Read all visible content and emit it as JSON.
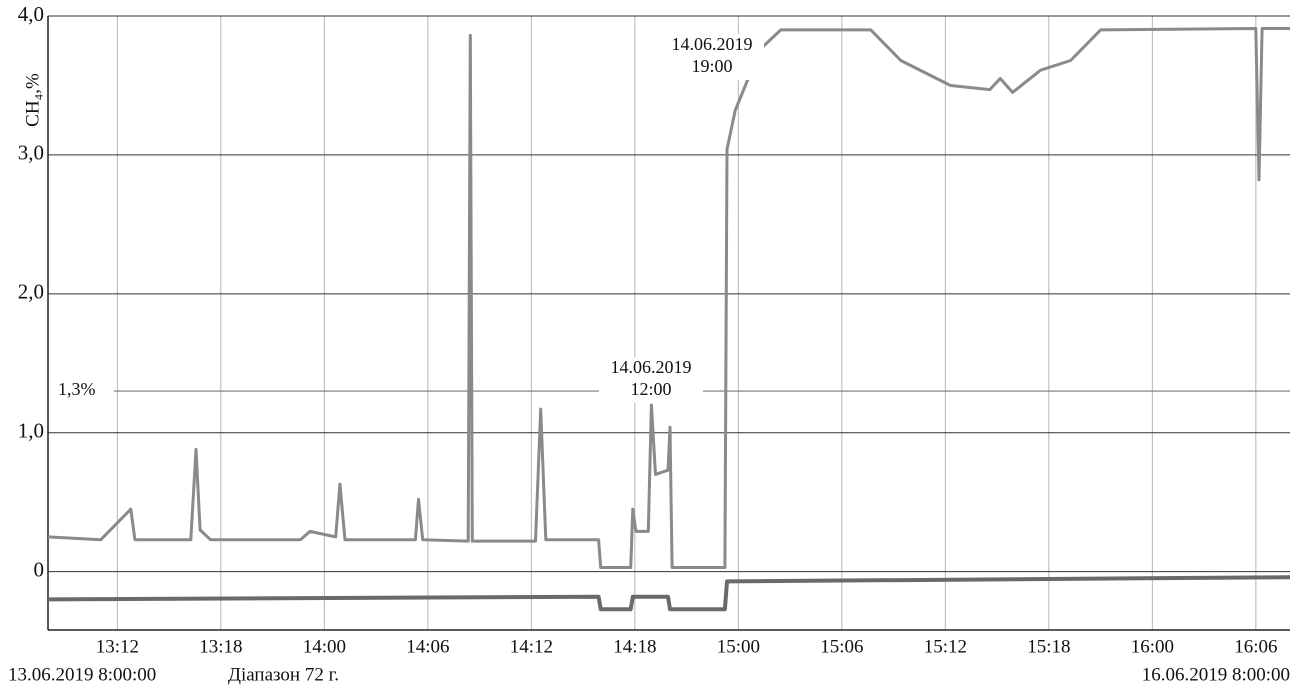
{
  "chart_data": {
    "type": "line",
    "y_label": "CH₄,%",
    "xlim": [
      0.33,
      12.33
    ],
    "xticks": [
      {
        "value": 1,
        "label": "13:12"
      },
      {
        "value": 2,
        "label": "13:18"
      },
      {
        "value": 3,
        "label": "14:00"
      },
      {
        "value": 4,
        "label": "14:06"
      },
      {
        "value": 5,
        "label": "14:12"
      },
      {
        "value": 6,
        "label": "14:18"
      },
      {
        "value": 7,
        "label": "15:00"
      },
      {
        "value": 8,
        "label": "15:06"
      },
      {
        "value": 9,
        "label": "15:12"
      },
      {
        "value": 10,
        "label": "15:18"
      },
      {
        "value": 11,
        "label": "16:00"
      },
      {
        "value": 12,
        "label": "16:06"
      }
    ],
    "ylim": [
      -0.42,
      4.0
    ],
    "yticks": [
      {
        "value": 0,
        "label": "0"
      },
      {
        "value": 1,
        "label": "1,0"
      },
      {
        "value": 2,
        "label": "2,0"
      },
      {
        "value": 3,
        "label": "3,0"
      },
      {
        "value": 4,
        "label": "4,0"
      }
    ],
    "grid": true,
    "threshold": {
      "value": 1.3,
      "label": "1,3%"
    },
    "annotations": [
      {
        "lines": [
          "14.06.2019",
          "19:00"
        ]
      },
      {
        "lines": [
          "14.06.2019",
          "12:00"
        ]
      }
    ],
    "footer": {
      "start": "13.06.2019  8:00:00",
      "range": "Діапазон 72 г.",
      "end": "16.06.2019  8:00:00"
    },
    "series": [
      {
        "color": "#8a8a8a",
        "x": [
          0.33,
          0.84,
          1.13,
          1.17,
          1.71,
          1.76,
          1.8,
          1.9,
          2.77,
          2.86,
          3.11,
          3.15,
          3.2,
          3.88,
          3.91,
          3.95,
          4.39,
          4.41,
          4.43,
          5.04,
          5.09,
          5.14,
          5.65,
          5.67,
          5.96,
          5.98,
          6.01,
          6.13,
          6.16,
          6.2,
          6.32,
          6.34,
          6.36,
          6.87,
          6.89,
          6.97,
          7.21,
          7.41,
          8.28,
          8.57,
          9.05,
          9.43,
          9.53,
          9.65,
          9.92,
          10.21,
          10.5,
          12.0,
          12.03,
          12.06,
          12.33
        ],
        "values": [
          0.25,
          0.23,
          0.45,
          0.23,
          0.23,
          0.88,
          0.3,
          0.23,
          0.23,
          0.29,
          0.25,
          0.63,
          0.23,
          0.23,
          0.52,
          0.23,
          0.22,
          3.86,
          0.22,
          0.22,
          1.17,
          0.23,
          0.23,
          0.03,
          0.03,
          0.45,
          0.29,
          0.29,
          1.2,
          0.7,
          0.73,
          1.04,
          0.03,
          0.03,
          3.04,
          3.32,
          3.76,
          3.9,
          3.9,
          3.68,
          3.5,
          3.47,
          3.55,
          3.45,
          3.61,
          3.68,
          3.9,
          3.91,
          2.82,
          3.91,
          3.91
        ]
      },
      {
        "color": "#6a6a6a",
        "x": [
          0.33,
          5.65,
          5.67,
          5.96,
          5.98,
          6.32,
          6.34,
          6.87,
          6.89,
          12.33
        ],
        "values": [
          -0.2,
          -0.18,
          -0.27,
          -0.27,
          -0.18,
          -0.18,
          -0.27,
          -0.27,
          -0.07,
          -0.04
        ]
      }
    ]
  }
}
